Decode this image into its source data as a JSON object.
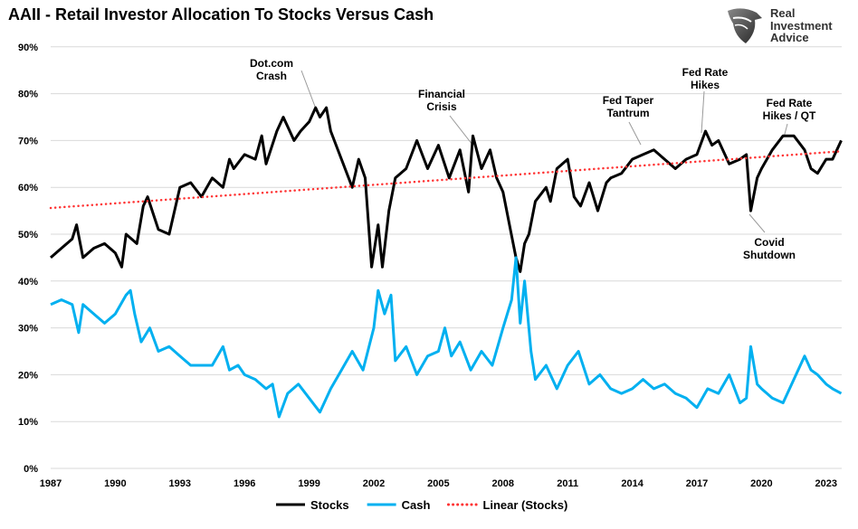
{
  "title": "AAII - Retail Investor Allocation To Stocks Versus Cash",
  "logo": {
    "text": [
      "Real",
      "Investment",
      "Advice"
    ]
  },
  "chart_data": {
    "type": "line",
    "title": "AAII - Retail Investor Allocation To Stocks Versus Cash",
    "xlim": [
      1987,
      2023.8
    ],
    "ylim": [
      0,
      90
    ],
    "x_ticks": [
      "1987",
      "1990",
      "1993",
      "1996",
      "1999",
      "2002",
      "2005",
      "2008",
      "2011",
      "2014",
      "2017",
      "2020",
      "2023"
    ],
    "y_ticks": [
      "0%",
      "10%",
      "20%",
      "30%",
      "40%",
      "50%",
      "60%",
      "70%",
      "80%",
      "90%"
    ],
    "grid": "horizontal",
    "legend_position": "bottom",
    "series": [
      {
        "name": "Stocks",
        "color": "#000000",
        "style": "solid",
        "x": [
          1987.0,
          1987.5,
          1988.0,
          1988.2,
          1988.5,
          1989.0,
          1989.5,
          1990.0,
          1990.3,
          1990.5,
          1991.0,
          1991.3,
          1991.5,
          1992.0,
          1992.5,
          1993.0,
          1993.5,
          1994.0,
          1994.5,
          1995.0,
          1995.3,
          1995.5,
          1996.0,
          1996.5,
          1996.8,
          1997.0,
          1997.5,
          1997.8,
          1998.0,
          1998.3,
          1998.6,
          1999.0,
          1999.3,
          1999.5,
          1999.8,
          2000.0,
          2000.5,
          2001.0,
          2001.3,
          2001.6,
          2001.9,
          2002.2,
          2002.4,
          2002.7,
          2003.0,
          2003.5,
          2004.0,
          2004.5,
          2005.0,
          2005.5,
          2006.0,
          2006.4,
          2006.6,
          2007.0,
          2007.4,
          2007.7,
          2008.0,
          2008.3,
          2008.6,
          2008.8,
          2009.0,
          2009.2,
          2009.5,
          2010.0,
          2010.2,
          2010.5,
          2011.0,
          2011.3,
          2011.6,
          2012.0,
          2012.4,
          2012.8,
          2013.0,
          2013.5,
          2014.0,
          2014.5,
          2015.0,
          2015.5,
          2016.0,
          2016.5,
          2017.0,
          2017.4,
          2017.7,
          2018.0,
          2018.5,
          2019.0,
          2019.3,
          2019.5,
          2019.8,
          2020.0,
          2020.5,
          2021.0,
          2021.5,
          2022.0,
          2022.3,
          2022.6,
          2023.0,
          2023.3,
          2023.7
        ],
        "values": [
          45,
          47,
          49,
          52,
          45,
          47,
          48,
          46,
          43,
          50,
          48,
          56,
          58,
          51,
          50,
          60,
          61,
          58,
          62,
          60,
          66,
          64,
          67,
          66,
          71,
          65,
          72,
          75,
          73,
          70,
          72,
          74,
          77,
          75,
          77,
          72,
          66,
          60,
          66,
          62,
          43,
          52,
          43,
          55,
          62,
          64,
          70,
          64,
          69,
          62,
          68,
          59,
          71,
          64,
          68,
          62,
          59,
          52,
          45,
          42,
          48,
          50,
          57,
          60,
          57,
          64,
          66,
          58,
          56,
          61,
          55,
          61,
          62,
          63,
          66,
          67,
          68,
          66,
          64,
          66,
          67,
          72,
          69,
          70,
          65,
          66,
          67,
          55,
          62,
          64,
          68,
          71,
          71,
          68,
          64,
          63,
          66,
          66,
          70
        ]
      },
      {
        "name": "Cash",
        "color": "#00b0f0",
        "style": "solid",
        "x": [
          1987.0,
          1987.5,
          1988.0,
          1988.3,
          1988.5,
          1989.0,
          1989.5,
          1990.0,
          1990.5,
          1990.7,
          1990.9,
          1991.2,
          1991.6,
          1992.0,
          1992.5,
          1993.0,
          1993.5,
          1994.0,
          1994.5,
          1995.0,
          1995.3,
          1995.7,
          1996.0,
          1996.5,
          1997.0,
          1997.3,
          1997.6,
          1998.0,
          1998.5,
          1999.0,
          1999.5,
          2000.0,
          2000.5,
          2001.0,
          2001.5,
          2002.0,
          2002.2,
          2002.5,
          2002.8,
          2003.0,
          2003.5,
          2004.0,
          2004.5,
          2005.0,
          2005.3,
          2005.6,
          2006.0,
          2006.5,
          2007.0,
          2007.5,
          2008.0,
          2008.4,
          2008.6,
          2008.8,
          2009.0,
          2009.3,
          2009.5,
          2010.0,
          2010.5,
          2011.0,
          2011.5,
          2012.0,
          2012.5,
          2013.0,
          2013.5,
          2014.0,
          2014.5,
          2015.0,
          2015.5,
          2016.0,
          2016.5,
          2017.0,
          2017.5,
          2018.0,
          2018.5,
          2019.0,
          2019.3,
          2019.5,
          2019.8,
          2020.0,
          2020.5,
          2021.0,
          2021.5,
          2022.0,
          2022.3,
          2022.6,
          2023.0,
          2023.3,
          2023.7
        ],
        "values": [
          35,
          36,
          35,
          29,
          35,
          33,
          31,
          33,
          37,
          38,
          33,
          27,
          30,
          25,
          26,
          24,
          22,
          22,
          22,
          26,
          21,
          22,
          20,
          19,
          17,
          18,
          11,
          16,
          18,
          15,
          12,
          17,
          21,
          25,
          21,
          30,
          38,
          33,
          37,
          23,
          26,
          20,
          24,
          25,
          30,
          24,
          27,
          21,
          25,
          22,
          30,
          36,
          45,
          31,
          40,
          25,
          19,
          22,
          17,
          22,
          25,
          18,
          20,
          17,
          16,
          17,
          19,
          17,
          18,
          16,
          15,
          13,
          17,
          16,
          20,
          14,
          15,
          26,
          18,
          17,
          15,
          14,
          19,
          24,
          21,
          20,
          18,
          17,
          16
        ]
      },
      {
        "name": "Linear (Stocks)",
        "color": "#ff3333",
        "style": "dotted",
        "x": [
          1987.0,
          2023.7
        ],
        "values": [
          55.6,
          67.7
        ]
      }
    ],
    "annotations": [
      {
        "text": [
          "Dot.com",
          "Crash"
        ],
        "x": 1999.4,
        "y": 76.5
      },
      {
        "text": [
          "Financial",
          "Crisis"
        ],
        "x": 2007.1,
        "y": 69.5
      },
      {
        "text": [
          "Fed Taper",
          "Tantrum"
        ],
        "x": 2015.0,
        "y": 69.0
      },
      {
        "text": [
          "Fed Rate",
          "Hikes"
        ],
        "x": 2016.8,
        "y": 73.5
      },
      {
        "text": [
          "Covid",
          "Shutdown"
        ],
        "x": 2019.5,
        "y": 54.5
      },
      {
        "text": [
          "Fed Rate",
          "Hikes / QT"
        ],
        "x": 2021.5,
        "y": 71.5
      }
    ]
  }
}
